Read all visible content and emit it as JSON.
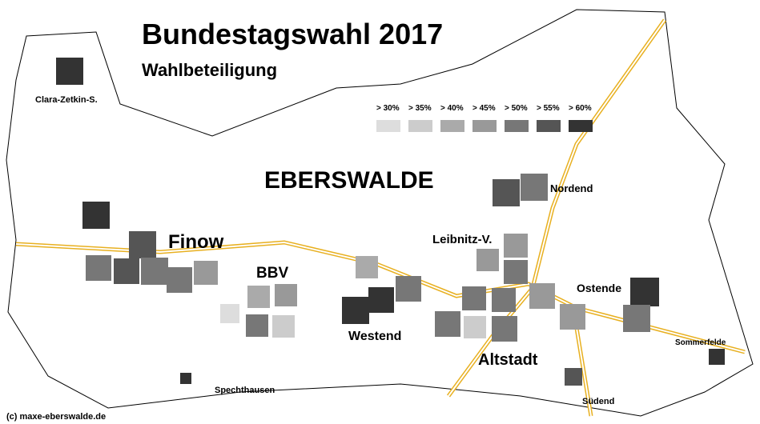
{
  "header": {
    "title": "Bundestagswahl 2017",
    "subtitle": "Wahlbeteiligung"
  },
  "legend": {
    "labels": [
      "> 30%",
      "> 35%",
      "> 40%",
      "> 45%",
      "> 50%",
      "> 55%",
      "> 60%"
    ]
  },
  "places": {
    "city": "EBERSWALDE",
    "finow": "Finow",
    "bbv": "BBV",
    "westend": "Westend",
    "altstadt": "Altstadt",
    "leibnitz": "Leibnitz-V.",
    "nordend": "Nordend",
    "ostende": "Ostende",
    "sommerfelde": "Sommerfelde",
    "suedend": "Südend",
    "spechthausen": "Spechthausen",
    "clara": "Clara-Zetkin-S."
  },
  "credit": "(c) maxe-eberswalde.de"
}
